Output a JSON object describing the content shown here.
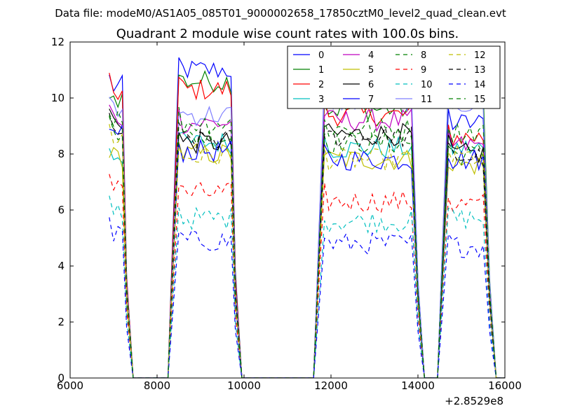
{
  "chart_data": {
    "type": "line",
    "suptitle": "Data file: modeM0/AS1A05_085T01_9000002658_17850cztM0_level2_quad_clean.evt",
    "title": "Quadrant 2 module wise count rates with 100.0s bins.",
    "xlabel": "",
    "ylabel": "",
    "x_offset_label": "+2.8529e8",
    "xlim": [
      6000,
      16000
    ],
    "ylim": [
      0,
      12
    ],
    "xticks": [
      6000,
      8000,
      10000,
      12000,
      14000,
      16000
    ],
    "yticks": [
      0,
      2,
      4,
      6,
      8,
      10,
      12
    ],
    "legend_position": "upper right, 4 columns",
    "segments": [
      [
        6900,
        7200
      ],
      [
        8500,
        9700
      ],
      [
        11850,
        13900
      ],
      [
        14700,
        15550
      ]
    ],
    "series": [
      {
        "name": "0",
        "color": "#0000ff",
        "dash": "solid",
        "levels": [
          10.4,
          11.0,
          10.0,
          9.1
        ]
      },
      {
        "name": "1",
        "color": "#008000",
        "dash": "solid",
        "levels": [
          10.0,
          10.6,
          9.6,
          10.0
        ]
      },
      {
        "name": "2",
        "color": "#ff0000",
        "dash": "solid",
        "levels": [
          10.2,
          10.3,
          9.4,
          8.6
        ]
      },
      {
        "name": "3",
        "color": "#00bfbf",
        "dash": "solid",
        "levels": [
          8.0,
          8.4,
          8.2,
          8.2
        ]
      },
      {
        "name": "4",
        "color": "#bf00bf",
        "dash": "solid",
        "levels": [
          9.3,
          9.1,
          9.2,
          8.3
        ]
      },
      {
        "name": "5",
        "color": "#bfbf00",
        "dash": "solid",
        "levels": [
          7.9,
          8.0,
          7.8,
          7.6
        ]
      },
      {
        "name": "6",
        "color": "#000000",
        "dash": "solid",
        "levels": [
          9.2,
          8.4,
          8.7,
          8.0
        ]
      },
      {
        "name": "7",
        "color": "#0000ff",
        "dash": "solid",
        "levels": [
          8.7,
          8.1,
          7.8,
          7.8
        ]
      },
      {
        "name": "8",
        "color": "#008000",
        "dash": "dashed",
        "levels": [
          8.9,
          8.6,
          8.4,
          8.0
        ]
      },
      {
        "name": "9",
        "color": "#ff0000",
        "dash": "dashed",
        "levels": [
          7.0,
          6.6,
          6.3,
          6.2
        ]
      },
      {
        "name": "10",
        "color": "#00bfbf",
        "dash": "dashed",
        "levels": [
          6.0,
          5.7,
          5.6,
          5.7
        ]
      },
      {
        "name": "11",
        "color": "#8080ff",
        "dash": "solid",
        "levels": [
          9.5,
          9.4,
          9.9,
          9.8
        ]
      },
      {
        "name": "12",
        "color": "#bfbf00",
        "dash": "dashed",
        "levels": [
          8.6,
          7.9,
          7.8,
          7.9
        ]
      },
      {
        "name": "13",
        "color": "#000000",
        "dash": "dashed",
        "levels": [
          8.8,
          8.5,
          8.6,
          7.9
        ]
      },
      {
        "name": "14",
        "color": "#0000ff",
        "dash": "dashed",
        "levels": [
          5.1,
          4.9,
          4.8,
          4.7
        ]
      },
      {
        "name": "15",
        "color": "#008000",
        "dash": "dashed",
        "levels": [
          9.3,
          9.1,
          8.9,
          8.8
        ]
      }
    ]
  }
}
